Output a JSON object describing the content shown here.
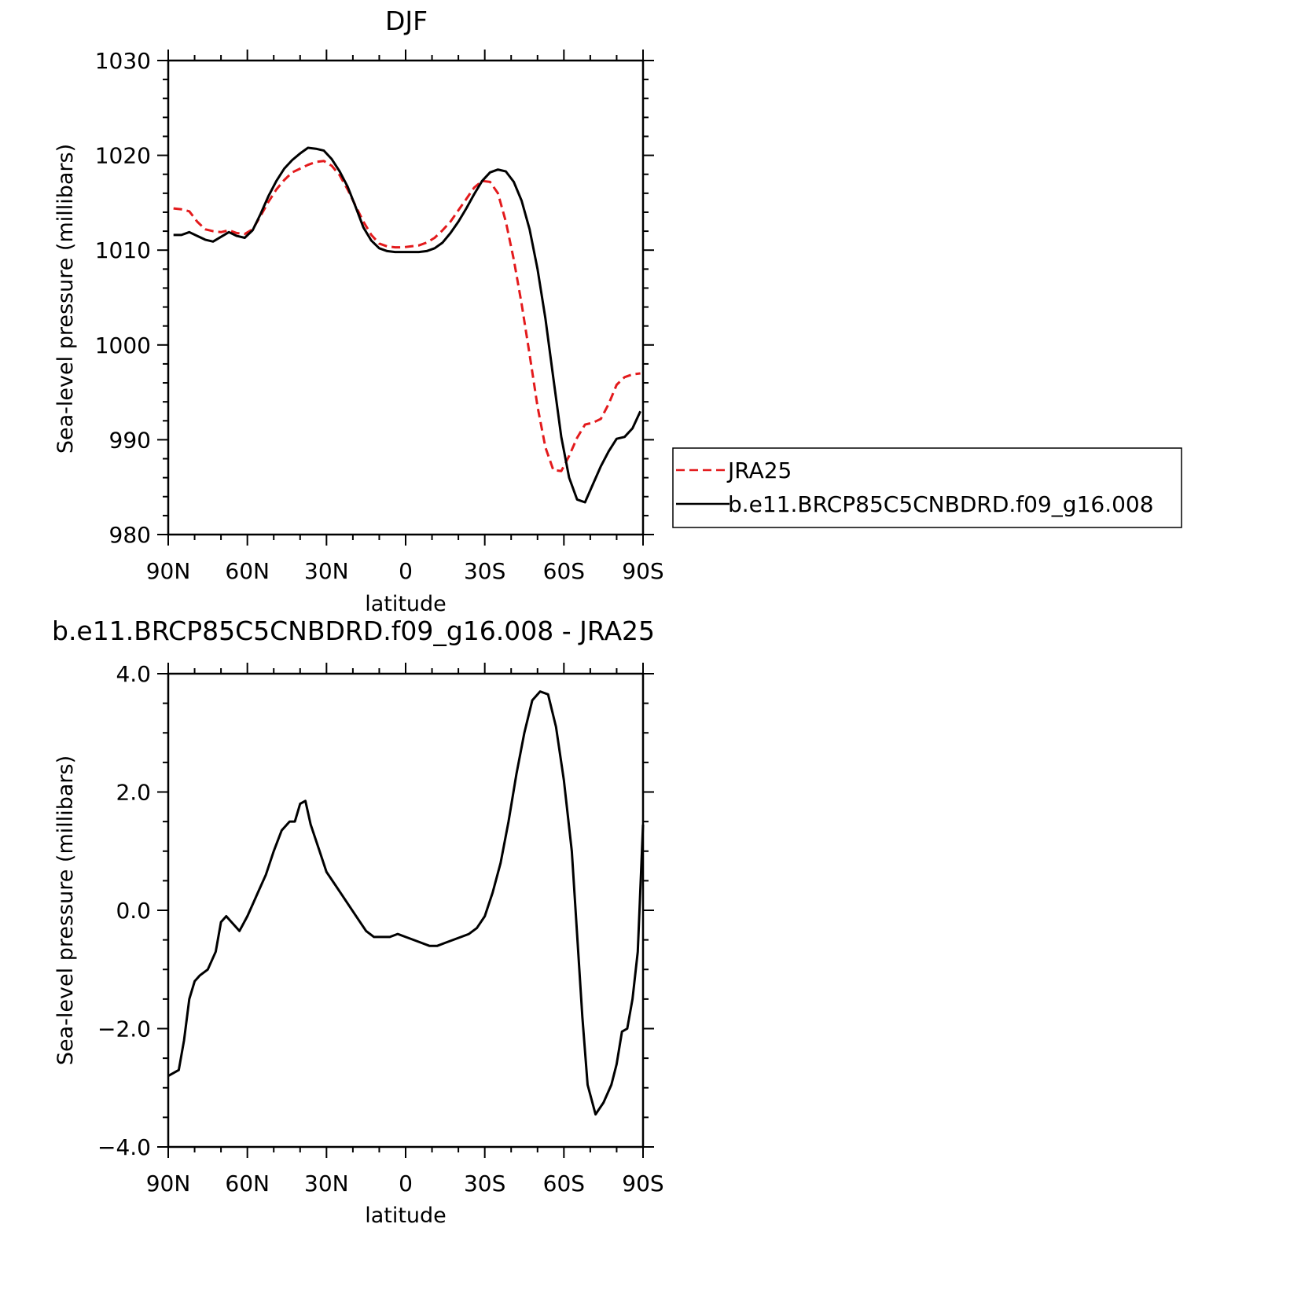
{
  "chart_data": [
    {
      "type": "line",
      "title": "DJF",
      "xlabel": "latitude",
      "ylabel": "Sea-level pressure (millibars)",
      "xlim": [
        90,
        -90
      ],
      "ylim": [
        980,
        1030
      ],
      "x_ticks": [
        "90N",
        "60N",
        "30N",
        "0",
        "30S",
        "60S",
        "90S"
      ],
      "y_ticks": [
        "980",
        "990",
        "1000",
        "1010",
        "1020",
        "1030"
      ],
      "legend": {
        "placement": "right",
        "entries": [
          "JRA25",
          "b.e11.BRCP85C5CNBDRD.f09_g16.008"
        ]
      },
      "series": [
        {
          "name": "JRA25",
          "color": "#e31a1c",
          "style": "dashed",
          "x": [
            88,
            85,
            82,
            79,
            76,
            73,
            70,
            67,
            64,
            61,
            58,
            55,
            52,
            49,
            46,
            43,
            40,
            37,
            34,
            31,
            28,
            25,
            22,
            19,
            16,
            13,
            10,
            7,
            4,
            1,
            -2,
            -5,
            -8,
            -11,
            -14,
            -17,
            -20,
            -23,
            -26,
            -29,
            -32,
            -35,
            -38,
            -41,
            -44,
            -47,
            -50,
            -53,
            -56,
            -59,
            -62,
            -65,
            -68,
            -71,
            -74,
            -77,
            -80,
            -83,
            -86,
            -89
          ],
          "values": [
            1014.4,
            1014.3,
            1014.1,
            1013.0,
            1012.2,
            1012.0,
            1011.9,
            1012.1,
            1011.8,
            1011.7,
            1012.2,
            1013.6,
            1015.1,
            1016.4,
            1017.4,
            1018.2,
            1018.6,
            1019.0,
            1019.3,
            1019.4,
            1018.9,
            1017.9,
            1016.4,
            1014.7,
            1013.0,
            1011.6,
            1010.7,
            1010.4,
            1010.3,
            1010.3,
            1010.4,
            1010.5,
            1010.8,
            1011.3,
            1012.1,
            1013.0,
            1014.2,
            1015.4,
            1016.6,
            1017.3,
            1017.2,
            1016.0,
            1013.0,
            1009.0,
            1004.3,
            999.0,
            993.5,
            989.2,
            986.8,
            986.7,
            988.3,
            990.2,
            991.6,
            991.8,
            992.2,
            993.8,
            995.8,
            996.6,
            996.9,
            997.0
          ]
        },
        {
          "name": "b.e11.BRCP85C5CNBDRD.f09_g16.008",
          "color": "#000000",
          "style": "solid",
          "x": [
            88,
            85,
            82,
            79,
            76,
            73,
            70,
            67,
            64,
            61,
            58,
            55,
            52,
            49,
            46,
            43,
            40,
            37,
            34,
            31,
            28,
            25,
            22,
            19,
            16,
            13,
            10,
            7,
            4,
            1,
            -2,
            -5,
            -8,
            -11,
            -14,
            -17,
            -20,
            -23,
            -26,
            -29,
            -32,
            -35,
            -38,
            -41,
            -44,
            -47,
            -50,
            -53,
            -56,
            -59,
            -62,
            -65,
            -68,
            -71,
            -74,
            -77,
            -80,
            -83,
            -86,
            -89
          ],
          "values": [
            1011.6,
            1011.6,
            1011.9,
            1011.5,
            1011.1,
            1010.9,
            1011.4,
            1011.9,
            1011.5,
            1011.3,
            1012.1,
            1013.8,
            1015.7,
            1017.3,
            1018.6,
            1019.5,
            1020.2,
            1020.8,
            1020.7,
            1020.5,
            1019.6,
            1018.3,
            1016.7,
            1014.6,
            1012.4,
            1011.0,
            1010.2,
            1009.9,
            1009.8,
            1009.8,
            1009.8,
            1009.8,
            1009.9,
            1010.2,
            1010.8,
            1011.8,
            1013.0,
            1014.4,
            1015.9,
            1017.3,
            1018.2,
            1018.5,
            1018.3,
            1017.2,
            1015.2,
            1012.2,
            1008.0,
            1002.8,
            996.5,
            990.3,
            986.0,
            983.7,
            983.4,
            985.3,
            987.2,
            988.8,
            990.1,
            990.3,
            991.2,
            993.0
          ]
        }
      ]
    },
    {
      "type": "line",
      "title": "b.e11.BRCP85C5CNBDRD.f09_g16.008 - JRA25",
      "xlabel": "latitude",
      "ylabel": "Sea-level pressure (millibars)",
      "xlim": [
        90,
        -90
      ],
      "ylim": [
        -4.0,
        4.0
      ],
      "x_ticks": [
        "90N",
        "60N",
        "30N",
        "0",
        "30S",
        "60S",
        "90S"
      ],
      "y_ticks": [
        "4.0",
        "2.0",
        "0.0",
        "-2.0",
        "-4.0"
      ],
      "series": [
        {
          "color": "#000000",
          "style": "solid",
          "x": [
            90,
            86,
            84,
            82,
            80,
            78,
            75,
            72,
            70,
            68,
            66,
            63,
            60,
            58,
            56,
            53,
            50,
            47,
            44,
            42,
            40,
            38,
            36,
            33,
            30,
            27,
            24,
            21,
            18,
            15,
            12,
            9,
            6,
            3,
            0,
            -3,
            -6,
            -9,
            -12,
            -15,
            -18,
            -21,
            -24,
            -27,
            -30,
            -33,
            -36,
            -39,
            -42,
            -45,
            -48,
            -51,
            -54,
            -57,
            -60,
            -63,
            -65,
            -67,
            -69,
            -72,
            -75,
            -78,
            -80,
            -82,
            -84,
            -86,
            -88,
            -90
          ],
          "values": [
            -2.8,
            -2.7,
            -2.2,
            -1.5,
            -1.2,
            -1.1,
            -1.0,
            -0.7,
            -0.2,
            -0.1,
            -0.2,
            -0.35,
            -0.1,
            0.1,
            0.3,
            0.6,
            1.0,
            1.35,
            1.5,
            1.5,
            1.8,
            1.85,
            1.45,
            1.05,
            0.65,
            0.45,
            0.25,
            0.05,
            -0.15,
            -0.35,
            -0.45,
            -0.45,
            -0.45,
            -0.4,
            -0.45,
            -0.5,
            -0.55,
            -0.6,
            -0.6,
            -0.55,
            -0.5,
            -0.45,
            -0.4,
            -0.3,
            -0.1,
            0.3,
            0.8,
            1.5,
            2.3,
            3.0,
            3.55,
            3.7,
            3.65,
            3.1,
            2.2,
            1.0,
            -0.4,
            -1.8,
            -2.95,
            -3.45,
            -3.25,
            -2.95,
            -2.6,
            -2.05,
            -2.0,
            -1.5,
            -0.7,
            1.45
          ]
        }
      ]
    }
  ]
}
